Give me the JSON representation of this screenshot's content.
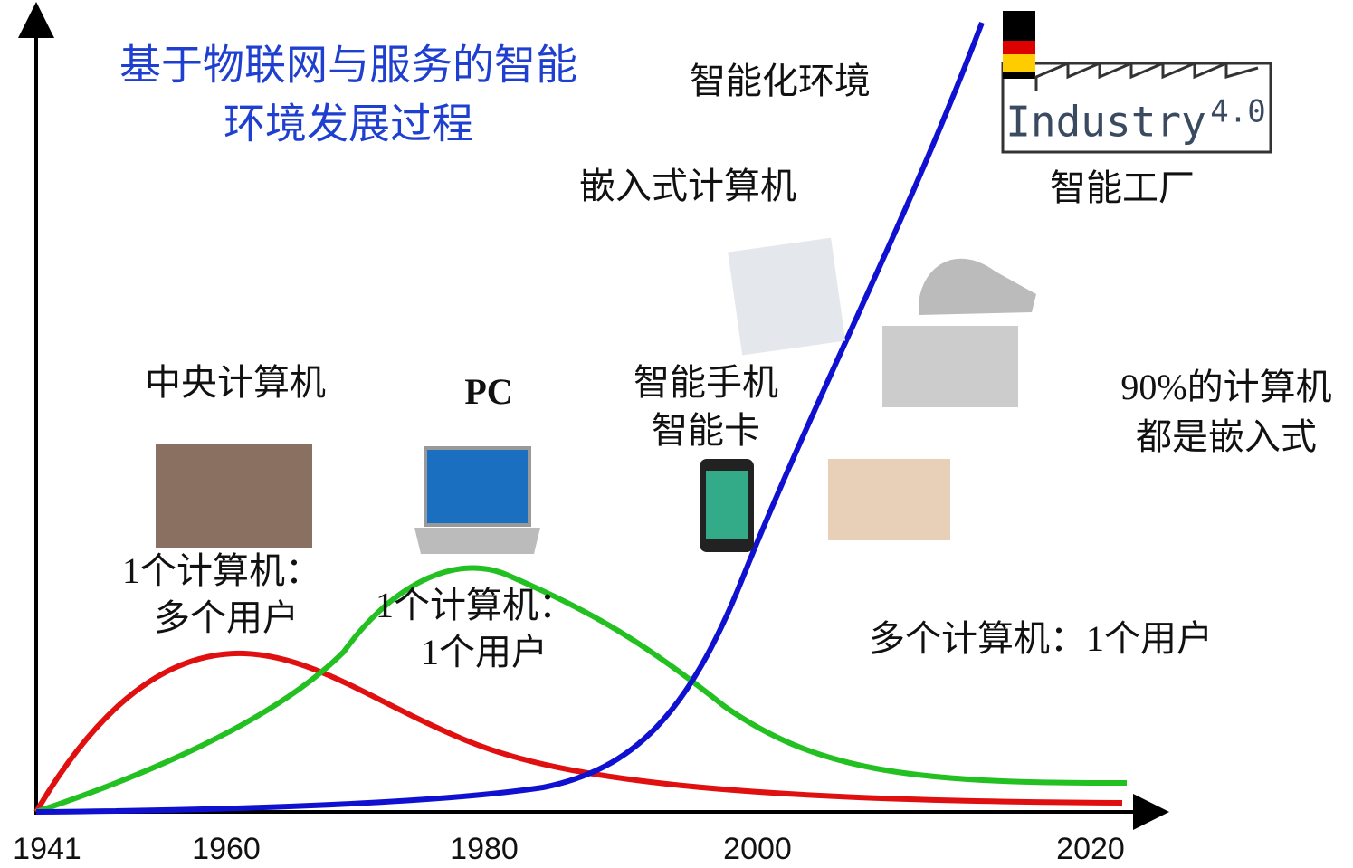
{
  "title": [
    "基于物联网与服务的智能",
    "环境发展过程"
  ],
  "stages": {
    "smart_environment": "智能化环境",
    "embedded_computer": "嵌入式计算机",
    "smart_factory": "智能工厂",
    "mainframe": "中央计算机",
    "pc": "PC",
    "smartphone": [
      "智能手机",
      "智能卡"
    ],
    "embedded_share": [
      "90%的计算机",
      "都是嵌入式"
    ]
  },
  "relations": {
    "mainframe": [
      "1个计算机：",
      "多个用户"
    ],
    "pc": [
      "1个计算机：",
      "1个用户"
    ],
    "embedded": "多个计算机：1个用户"
  },
  "logo": {
    "name": "Industry",
    "version": "4.0"
  },
  "x_axis": {
    "labels": [
      "1941",
      "1960",
      "1980",
      "2000",
      "2020"
    ]
  }
}
